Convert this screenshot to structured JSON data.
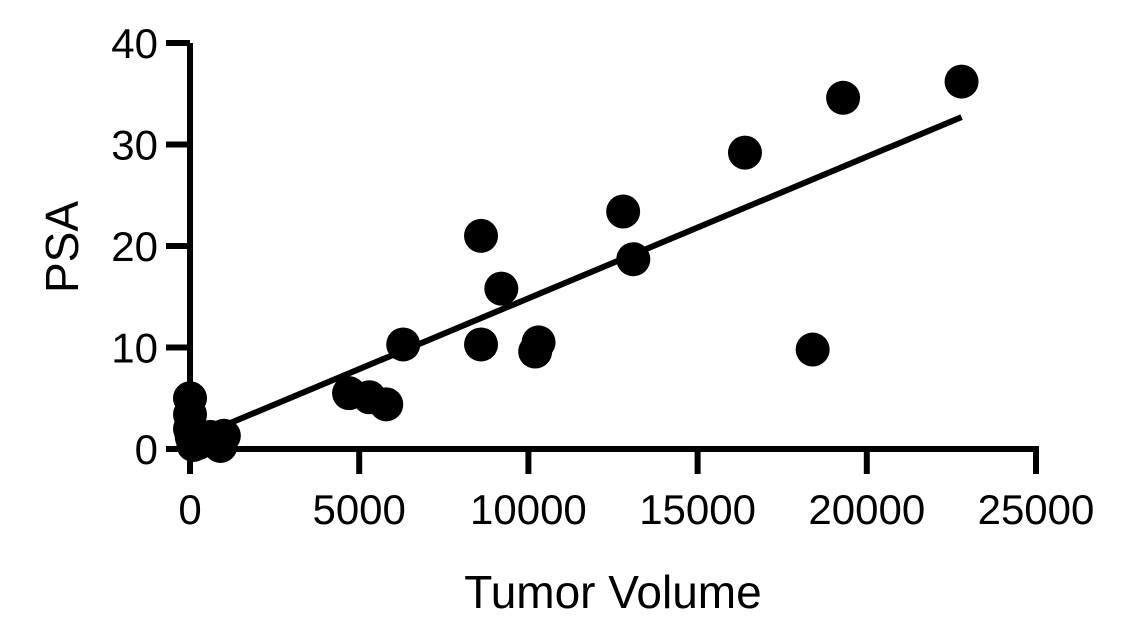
{
  "chart_data": {
    "type": "scatter",
    "title": "",
    "xlabel": "Tumor Volume",
    "ylabel": "PSA",
    "xlim": [
      0,
      25000
    ],
    "ylim": [
      0,
      40
    ],
    "x_ticks": [
      0,
      5000,
      10000,
      15000,
      20000,
      25000
    ],
    "x_tick_labels": [
      "0",
      "5000",
      "10000",
      "15000",
      "20000",
      "25000"
    ],
    "y_ticks": [
      0,
      10,
      20,
      30,
      40
    ],
    "y_tick_labels": [
      "0",
      "10",
      "20",
      "30",
      "40"
    ],
    "grid": false,
    "legend": "none",
    "series": [
      {
        "points": [
          {
            "x": 0,
            "y": 5.0
          },
          {
            "x": 0,
            "y": 3.4
          },
          {
            "x": 0,
            "y": 2.0
          },
          {
            "x": 50,
            "y": 1.2
          },
          {
            "x": 100,
            "y": 0.4
          },
          {
            "x": 250,
            "y": 0.6
          },
          {
            "x": 400,
            "y": 1.0
          },
          {
            "x": 600,
            "y": 1.2
          },
          {
            "x": 900,
            "y": 0.3
          },
          {
            "x": 1000,
            "y": 1.3
          },
          {
            "x": 4700,
            "y": 5.5
          },
          {
            "x": 5300,
            "y": 5.1
          },
          {
            "x": 5800,
            "y": 4.4
          },
          {
            "x": 6300,
            "y": 10.3
          },
          {
            "x": 8600,
            "y": 21.0
          },
          {
            "x": 8600,
            "y": 10.3
          },
          {
            "x": 9200,
            "y": 15.8
          },
          {
            "x": 10200,
            "y": 9.6
          },
          {
            "x": 10300,
            "y": 10.5
          },
          {
            "x": 12800,
            "y": 23.4
          },
          {
            "x": 13100,
            "y": 18.7
          },
          {
            "x": 16400,
            "y": 29.2
          },
          {
            "x": 18400,
            "y": 9.8
          },
          {
            "x": 19300,
            "y": 34.6
          },
          {
            "x": 22800,
            "y": 36.2
          }
        ]
      }
    ],
    "regression_line": {
      "x": [
        0,
        22800
      ],
      "y": [
        0.9,
        32.7
      ]
    },
    "colors": {
      "marker": "#000000",
      "line": "#000000",
      "axis": "#000000"
    }
  }
}
